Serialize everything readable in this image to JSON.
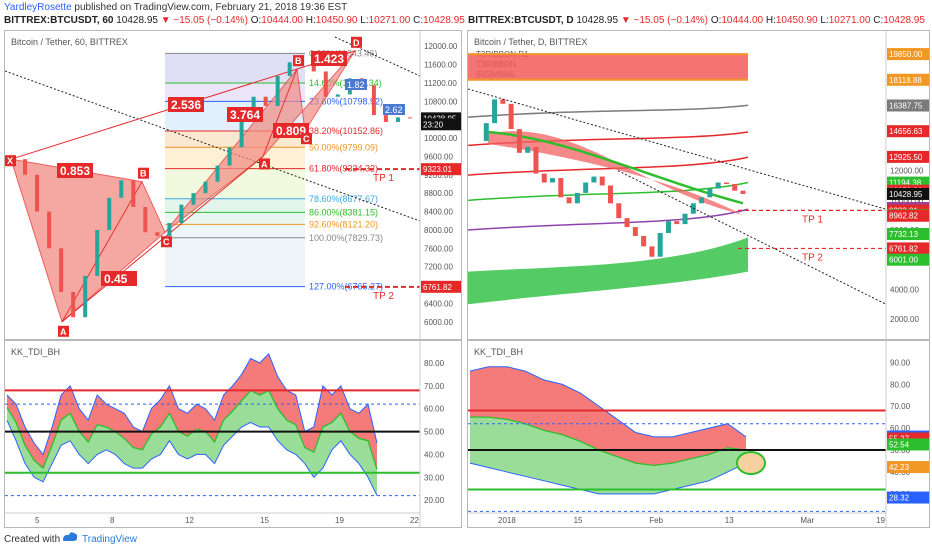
{
  "header": {
    "author": "YardleyRosette",
    "published": "published on TradingView.com, February 21, 2018 19:36 EST",
    "left_symbol": "BITTREX:BTCUSDT, 60",
    "right_symbol": "BITTREX:BTCUSDT, D",
    "price": "10428.95",
    "change": "▼ −15.05 (−0.14%)",
    "open": "10444.00",
    "high": "10450.90",
    "low": "10271.00",
    "close": "10428.95"
  },
  "footer": {
    "made_with": "Created with",
    "brand": "TradingView"
  },
  "colors": {
    "up": "#26a69a",
    "down": "#ef5350",
    "pattern_fill": "#f28b82",
    "accent_red": "#e5282a",
    "blue": "#2962ff",
    "green": "#2dbe2d"
  },
  "chart_data": [
    {
      "type": "line",
      "panel": "left-price",
      "title": "Bitcoin / Tether, 60, BITTREX",
      "yaxis_ticks": [
        "12000.00",
        "11600.00",
        "11200.00",
        "10800.00",
        "10400.00",
        "10000.00",
        "9600.00",
        "9200.00",
        "8800.00",
        "8400.00",
        "8000.00",
        "7600.00",
        "7200.00",
        "6800.00",
        "6400.00",
        "6000.00"
      ],
      "ylim": [
        5800,
        12200
      ],
      "x_ticks": [
        "5",
        "8",
        "12",
        "15",
        "19",
        "22"
      ],
      "price_badges": [
        {
          "label": "10428.95",
          "value": 10428.95,
          "bg": "#111111"
        },
        {
          "label": "23:20",
          "value": 10300,
          "bg": "#111111"
        },
        {
          "label": "9323.01",
          "value": 9323.01,
          "bg": "#e5282a"
        },
        {
          "label": "6761.82",
          "value": 6761.82,
          "bg": "#e5282a"
        }
      ],
      "series": [
        {
          "values": [
            9540,
            9200,
            8400,
            7600,
            6650,
            6100,
            7000,
            8000,
            8700,
            9080,
            8500,
            7950,
            7870,
            8150,
            8550,
            8800,
            9050,
            9400,
            9800,
            10350,
            10900,
            10700,
            11350,
            11650,
            11800,
            11450,
            10900,
            10950,
            11300,
            11150,
            10500,
            10350,
            10450,
            10430
          ]
        }
      ],
      "harmonic_points": [
        {
          "label": "X",
          "price": 9540
        },
        {
          "label": "A",
          "price": 6000
        },
        {
          "label": "B",
          "price": 9050
        },
        {
          "label": "C",
          "price": 7950
        },
        {
          "label": "A",
          "price": 9600
        },
        {
          "label": "B",
          "price": 11500
        },
        {
          "label": "C",
          "price": 10100
        },
        {
          "label": "D",
          "price": 11900
        }
      ],
      "ratio_labels": [
        "0.853",
        "0.45",
        "2.536",
        "3.764",
        "0.809",
        "1.423"
      ],
      "fib_levels": [
        {
          "label": "0.00%(11843.46)",
          "value": 11843.46
        },
        {
          "label": "14.60%(11197.34)",
          "value": 11197.34
        },
        {
          "label": "23.60%(10798.92)",
          "value": 10798.92
        },
        {
          "label": "38.20%(10152.86)",
          "value": 10152.86
        },
        {
          "label": "50.00%(9799.09)",
          "value": 9799.09
        },
        {
          "label": "61.80%(9334.32)",
          "value": 9334.32
        },
        {
          "label": "78.60%(8677.67)",
          "value": 8677.67
        },
        {
          "label": "86.00%(8381.15)",
          "value": 8381.15
        },
        {
          "label": "92.60%(8121.20)",
          "value": 8121.2
        },
        {
          "label": "100.00%(7829.73)",
          "value": 7829.73
        },
        {
          "label": "127.00%(6765.27)",
          "value": 6765.27
        }
      ],
      "small_labels": [
        "1.82",
        "2.62"
      ],
      "targets": [
        {
          "label": "TP 1",
          "value": 9323.01
        },
        {
          "label": "TP 2",
          "value": 6761.82
        }
      ]
    },
    {
      "type": "line",
      "panel": "right-price",
      "title": "Bitcoin / Tether, D, BITTREX",
      "legend": [
        "T3RIBBON R1",
        "T3RIBBON",
        "[RS]MIMAL"
      ],
      "yaxis_ticks": [
        "12000.00",
        "10000.00",
        "8000.00",
        "6000.00",
        "4000.00",
        "2000.00"
      ],
      "ylim": [
        1200,
        21000
      ],
      "x_ticks": [
        "2018",
        "15",
        "Feb",
        "13",
        "Mar",
        "19"
      ],
      "price_badges": [
        {
          "label": "19850.00",
          "value": 19850,
          "bg": "#f29624"
        },
        {
          "label": "18118.88",
          "value": 18118.88,
          "bg": "#f29624"
        },
        {
          "label": "16387.75",
          "value": 16387.75,
          "bg": "#7b7b7b"
        },
        {
          "label": "14656.63",
          "value": 14656.63,
          "bg": "#e5282a"
        },
        {
          "label": "12925.50",
          "value": 12925.5,
          "bg": "#e5282a"
        },
        {
          "label": "11194.38",
          "value": 11194.38,
          "bg": "#2dbe2d"
        },
        {
          "label": "10650.81",
          "value": 10650.81,
          "bg": "#e5282a"
        },
        {
          "label": "10428.95",
          "value": 10428.95,
          "bg": "#111111"
        },
        {
          "label": "9480.96",
          "value": 9480.96,
          "bg": "#e5282a"
        },
        {
          "label": "9463.25",
          "value": 9463.25,
          "bg": "#8e44ad"
        },
        {
          "label": "9323.01",
          "value": 9323.01,
          "bg": "#e5282a"
        },
        {
          "label": "9002.10",
          "value": 9002.1,
          "bg": "#2dbe2d"
        },
        {
          "label": "8962.82",
          "value": 8962.82,
          "bg": "#e5282a"
        },
        {
          "label": "7732.13",
          "value": 7732.13,
          "bg": "#2dbe2d"
        },
        {
          "label": "6761.82",
          "value": 6761.82,
          "bg": "#e5282a"
        },
        {
          "label": "6001.00",
          "value": 6001,
          "bg": "#2dbe2d"
        }
      ],
      "series": [
        {
          "values": [
            14000,
            15200,
            16800,
            16500,
            14800,
            13200,
            13600,
            11800,
            11200,
            11500,
            10200,
            9800,
            10500,
            11200,
            11600,
            11000,
            9800,
            8800,
            8200,
            7600,
            6900,
            6200,
            7800,
            8600,
            8400,
            9100,
            9800,
            10200,
            10800,
            11200,
            11100,
            10650,
            10429
          ]
        }
      ],
      "targets": [
        {
          "label": "TP 1",
          "value": 9323.01
        },
        {
          "label": "TP 2",
          "value": 6761.82
        }
      ]
    },
    {
      "type": "area",
      "panel": "left-tdi",
      "title": "KK_TDI_BH",
      "yaxis_ticks": [
        "80.00",
        "70.00",
        "60.00",
        "50.00",
        "40.00",
        "30.00",
        "20.00"
      ],
      "ylim": [
        17,
        87
      ],
      "levels": [
        68,
        50,
        32
      ],
      "series": [
        {
          "name": "upper",
          "values": [
            66,
            62,
            52,
            45,
            40,
            52,
            66,
            70,
            60,
            55,
            66,
            62,
            60,
            58,
            52,
            50,
            60,
            64,
            70,
            60,
            58,
            62,
            60,
            55,
            66,
            70,
            75,
            82,
            80,
            84,
            74,
            68,
            66,
            50,
            52,
            70,
            66,
            70,
            60,
            58,
            62,
            45
          ]
        },
        {
          "name": "lower",
          "values": [
            55,
            46,
            36,
            30,
            28,
            36,
            44,
            46,
            40,
            36,
            40,
            42,
            40,
            36,
            34,
            34,
            38,
            40,
            46,
            40,
            38,
            40,
            40,
            36,
            44,
            48,
            52,
            54,
            52,
            52,
            46,
            42,
            40,
            36,
            30,
            34,
            42,
            46,
            40,
            36,
            30,
            22
          ]
        }
      ]
    },
    {
      "type": "area",
      "panel": "right-tdi",
      "title": "KK_TDI_BH",
      "yaxis_ticks": [
        "90.00",
        "80.00",
        "70.00",
        "60.00",
        "50.00",
        "40.00",
        "30.00"
      ],
      "ylim": [
        24,
        97
      ],
      "price_badges": [
        {
          "label": "56.14",
          "value": 56.14,
          "bg": "#2962ff"
        },
        {
          "label": "55.27",
          "value": 55.27,
          "bg": "#e5282a"
        },
        {
          "label": "52.54",
          "value": 52.54,
          "bg": "#2dbe2d"
        },
        {
          "label": "42.23",
          "value": 42.23,
          "bg": "#f29624"
        },
        {
          "label": "28.32",
          "value": 28.32,
          "bg": "#2962ff"
        }
      ],
      "levels": [
        68,
        50,
        32
      ],
      "series": [
        {
          "name": "upper",
          "values": [
            86,
            88,
            88,
            86,
            82,
            80,
            76,
            70,
            64,
            58,
            56,
            56,
            58,
            60,
            62,
            56
          ]
        },
        {
          "name": "lower",
          "values": [
            44,
            42,
            40,
            38,
            36,
            34,
            32,
            30,
            30,
            30,
            30,
            32,
            34,
            36,
            40,
            44
          ]
        }
      ]
    }
  ]
}
